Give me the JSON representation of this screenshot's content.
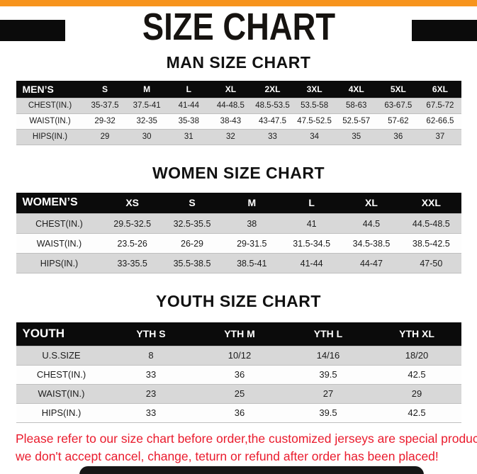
{
  "page": {
    "title": "SIZE CHART",
    "colors": {
      "accent_orange": "#f7941d",
      "header_black": "#0b0b0b",
      "stripe_gray": "#d8d8d8",
      "note_red": "#ea1b2d"
    }
  },
  "sections": {
    "men": {
      "heading": "MAN SIZE CHART"
    },
    "women": {
      "heading": "WOMEN SIZE CHART"
    },
    "youth": {
      "heading": "YOUTH SIZE CHART"
    }
  },
  "tables": {
    "men": {
      "header": [
        "MEN’S",
        "S",
        "M",
        "L",
        "XL",
        "2XL",
        "3XL",
        "4XL",
        "5XL",
        "6XL"
      ],
      "rows": [
        [
          "CHEST(IN.)",
          "35-37.5",
          "37.5-41",
          "41-44",
          "44-48.5",
          "48.5-53.5",
          "53.5-58",
          "58-63",
          "63-67.5",
          "67.5-72"
        ],
        [
          "WAIST(IN.)",
          "29-32",
          "32-35",
          "35-38",
          "38-43",
          "43-47.5",
          "47.5-52.5",
          "52.5-57",
          "57-62",
          "62-66.5"
        ],
        [
          "HIPS(IN.)",
          "29",
          "30",
          "31",
          "32",
          "33",
          "34",
          "35",
          "36",
          "37"
        ]
      ]
    },
    "women": {
      "header": [
        "WOMEN’S",
        "XS",
        "S",
        "M",
        "L",
        "XL",
        "XXL"
      ],
      "rows": [
        [
          "CHEST(IN.)",
          "29.5-32.5",
          "32.5-35.5",
          "38",
          "41",
          "44.5",
          "44.5-48.5"
        ],
        [
          "WAIST(IN.)",
          "23.5-26",
          "26-29",
          "29-31.5",
          "31.5-34.5",
          "34.5-38.5",
          "38.5-42.5"
        ],
        [
          "HIPS(IN.)",
          "33-35.5",
          "35.5-38.5",
          "38.5-41",
          "41-44",
          "44-47",
          "47-50"
        ]
      ]
    },
    "youth": {
      "header": [
        "YOUTH",
        "YTH S",
        "YTH M",
        "YTH L",
        "YTH XL"
      ],
      "rows": [
        [
          "U.S.SIZE",
          "8",
          "10/12",
          "14/16",
          "18/20"
        ],
        [
          "CHEST(IN.)",
          "33",
          "36",
          "39.5",
          "42.5"
        ],
        [
          "WAIST(IN.)",
          "23",
          "25",
          "27",
          "29"
        ],
        [
          "HIPS(IN.)",
          "33",
          "36",
          "39.5",
          "42.5"
        ]
      ]
    }
  },
  "footer": {
    "line1": "Please refer to our size chart before order,the customized jerseys are special products,",
    "line2": "we don't accept cancel, change, teturn or refund after order has been placed!"
  }
}
